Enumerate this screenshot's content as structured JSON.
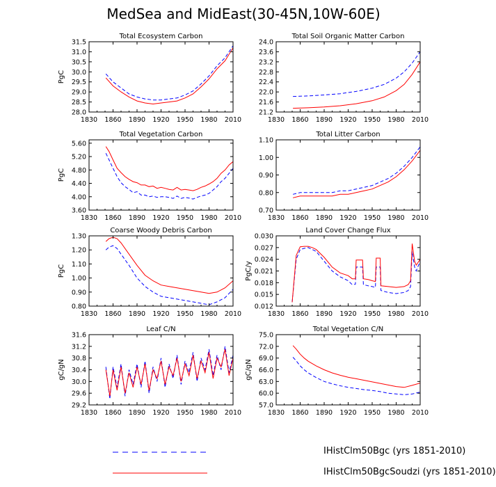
{
  "title": "MedSea and MidEast(30-45N,10W-60E)",
  "legend": [
    {
      "label": "IHistClm50Bgc (yrs 1851-2010)",
      "color": "#0000ff",
      "style": "dashed"
    },
    {
      "label": "IHistClm50BgcSoudzi (yrs 1851-2010)",
      "color": "#ff0000",
      "style": "solid"
    }
  ],
  "chart_data": [
    {
      "type": "line",
      "title": "Total Ecosystem Carbon",
      "xlabel": "",
      "ylabel": "PgC",
      "xlim": [
        1830,
        2010
      ],
      "xticks": [
        "1830",
        "1860",
        "1890",
        "1920",
        "1950",
        "1980",
        "2010"
      ],
      "ylim": [
        28.0,
        31.5
      ],
      "yticks": [
        "28.0",
        "28.5",
        "29.0",
        "29.5",
        "30.0",
        "30.5",
        "31.0",
        "31.5"
      ],
      "x": [
        1851,
        1860,
        1870,
        1880,
        1890,
        1900,
        1910,
        1920,
        1930,
        1940,
        1950,
        1960,
        1970,
        1980,
        1990,
        2000,
        2010
      ],
      "series": [
        {
          "name": "IHistClm50Bgc (yrs 1851-2010)",
          "values": [
            29.9,
            29.5,
            29.2,
            28.9,
            28.75,
            28.65,
            28.6,
            28.6,
            28.65,
            28.7,
            28.85,
            29.05,
            29.4,
            29.8,
            30.3,
            30.7,
            31.3
          ]
        },
        {
          "name": "IHistClm50BgcSoudzi (yrs 1851-2010)",
          "values": [
            29.7,
            29.3,
            29.0,
            28.75,
            28.55,
            28.45,
            28.4,
            28.45,
            28.5,
            28.55,
            28.7,
            28.9,
            29.25,
            29.65,
            30.15,
            30.55,
            31.2
          ]
        }
      ]
    },
    {
      "type": "line",
      "title": "Total Soil Organic Matter Carbon",
      "xlabel": "",
      "ylabel": "",
      "xlim": [
        1830,
        2010
      ],
      "xticks": [
        "1830",
        "1860",
        "1890",
        "1920",
        "1950",
        "1980",
        "2010"
      ],
      "ylim": [
        21.2,
        24.0
      ],
      "yticks": [
        "21.2",
        "21.6",
        "22.0",
        "22.4",
        "22.8",
        "23.2",
        "23.6",
        "24.0"
      ],
      "x": [
        1851,
        1870,
        1890,
        1910,
        1930,
        1950,
        1965,
        1980,
        1990,
        2000,
        2010
      ],
      "series": [
        {
          "name": "IHistClm50Bgc (yrs 1851-2010)",
          "values": [
            21.82,
            21.84,
            21.88,
            21.93,
            22.02,
            22.15,
            22.3,
            22.55,
            22.8,
            23.15,
            23.6
          ]
        },
        {
          "name": "IHistClm50BgcSoudzi (yrs 1851-2010)",
          "values": [
            21.35,
            21.37,
            21.4,
            21.45,
            21.53,
            21.65,
            21.8,
            22.05,
            22.3,
            22.7,
            23.2
          ]
        }
      ]
    },
    {
      "type": "line",
      "title": "Total Vegetation Carbon",
      "xlabel": "",
      "ylabel": "PgC",
      "xlim": [
        1830,
        2010
      ],
      "xticks": [
        "1830",
        "1860",
        "1890",
        "1920",
        "1950",
        "1980",
        "2010"
      ],
      "ylim": [
        3.6,
        5.7
      ],
      "yticks": [
        "3.60",
        "4.00",
        "4.40",
        "4.80",
        "5.20",
        "5.60"
      ],
      "x": [
        1851,
        1855,
        1860,
        1865,
        1870,
        1875,
        1880,
        1885,
        1890,
        1895,
        1900,
        1905,
        1910,
        1915,
        1920,
        1925,
        1930,
        1935,
        1940,
        1945,
        1950,
        1955,
        1960,
        1965,
        1970,
        1975,
        1980,
        1985,
        1990,
        1995,
        2000,
        2005,
        2010
      ],
      "series": [
        {
          "name": "IHistClm50Bgc (yrs 1851-2010)",
          "values": [
            5.3,
            5.1,
            4.85,
            4.6,
            4.42,
            4.3,
            4.22,
            4.12,
            4.15,
            4.05,
            4.05,
            4.0,
            4.02,
            3.98,
            4.0,
            4.0,
            3.98,
            3.95,
            4.02,
            3.95,
            3.98,
            3.96,
            3.93,
            3.98,
            4.02,
            4.05,
            4.1,
            4.2,
            4.3,
            4.45,
            4.55,
            4.7,
            4.85
          ]
        },
        {
          "name": "IHistClm50BgcSoudzi (yrs 1851-2010)",
          "values": [
            5.5,
            5.35,
            5.1,
            4.85,
            4.72,
            4.6,
            4.52,
            4.45,
            4.42,
            4.35,
            4.35,
            4.3,
            4.32,
            4.25,
            4.28,
            4.25,
            4.22,
            4.2,
            4.28,
            4.2,
            4.22,
            4.2,
            4.18,
            4.22,
            4.28,
            4.32,
            4.38,
            4.45,
            4.55,
            4.7,
            4.8,
            4.95,
            5.05
          ]
        }
      ]
    },
    {
      "type": "line",
      "title": "Total Litter Carbon",
      "xlabel": "",
      "ylabel": "",
      "xlim": [
        1830,
        2010
      ],
      "xticks": [
        "1830",
        "1860",
        "1890",
        "1920",
        "1950",
        "1980",
        "2010"
      ],
      "ylim": [
        0.7,
        1.1
      ],
      "yticks": [
        "0.70",
        "0.80",
        "0.90",
        "1.00",
        "1.10"
      ],
      "x": [
        1851,
        1860,
        1870,
        1880,
        1890,
        1900,
        1910,
        1920,
        1930,
        1940,
        1950,
        1960,
        1970,
        1980,
        1990,
        2000,
        2010
      ],
      "series": [
        {
          "name": "IHistClm50Bgc (yrs 1851-2010)",
          "values": [
            0.79,
            0.8,
            0.8,
            0.8,
            0.8,
            0.8,
            0.81,
            0.81,
            0.82,
            0.83,
            0.84,
            0.86,
            0.88,
            0.91,
            0.95,
            1.0,
            1.06
          ]
        },
        {
          "name": "IHistClm50BgcSoudzi (yrs 1851-2010)",
          "values": [
            0.77,
            0.78,
            0.78,
            0.78,
            0.78,
            0.78,
            0.79,
            0.79,
            0.8,
            0.81,
            0.82,
            0.84,
            0.86,
            0.89,
            0.93,
            0.98,
            1.04
          ]
        }
      ]
    },
    {
      "type": "line",
      "title": "Coarse Woody Debris Carbon",
      "xlabel": "",
      "ylabel": "PgC",
      "xlim": [
        1830,
        2010
      ],
      "xticks": [
        "1830",
        "1860",
        "1890",
        "1920",
        "1950",
        "1980",
        "2010"
      ],
      "ylim": [
        0.8,
        1.3
      ],
      "yticks": [
        "0.80",
        "0.90",
        "1.00",
        "1.10",
        "1.20",
        "1.30"
      ],
      "x": [
        1851,
        1855,
        1860,
        1865,
        1870,
        1880,
        1890,
        1900,
        1910,
        1920,
        1930,
        1940,
        1950,
        1960,
        1970,
        1980,
        1990,
        2000,
        2010
      ],
      "series": [
        {
          "name": "IHistClm50Bgc (yrs 1851-2010)",
          "values": [
            1.2,
            1.22,
            1.23,
            1.21,
            1.17,
            1.09,
            1.0,
            0.94,
            0.9,
            0.87,
            0.86,
            0.85,
            0.84,
            0.83,
            0.82,
            0.81,
            0.83,
            0.86,
            0.92
          ]
        },
        {
          "name": "IHistClm50BgcSoudzi (yrs 1851-2010)",
          "values": [
            1.26,
            1.28,
            1.29,
            1.28,
            1.25,
            1.17,
            1.09,
            1.02,
            0.98,
            0.95,
            0.94,
            0.93,
            0.92,
            0.91,
            0.9,
            0.89,
            0.9,
            0.93,
            0.98
          ]
        }
      ]
    },
    {
      "type": "line",
      "title": "Land Cover Change Flux",
      "xlabel": "",
      "ylabel": "PgC/y",
      "xlim": [
        1830,
        2010
      ],
      "xticks": [
        "1830",
        "1860",
        "1890",
        "1920",
        "1950",
        "1980",
        "2010"
      ],
      "ylim": [
        0.012,
        0.03
      ],
      "yticks": [
        "0.012",
        "0.015",
        "0.018",
        "0.021",
        "0.024",
        "0.027",
        "0.030"
      ],
      "x": [
        1850,
        1855,
        1860,
        1865,
        1870,
        1875,
        1880,
        1890,
        1900,
        1910,
        1920,
        1925,
        1929,
        1930,
        1938,
        1939,
        1945,
        1950,
        1954,
        1955,
        1960,
        1961,
        1970,
        1980,
        1990,
        1995,
        1998,
        2000,
        2003,
        2005,
        2010
      ],
      "series": [
        {
          "name": "IHistClm50Bgc (yrs 1851-2010)",
          "values": [
            0.013,
            0.024,
            0.0265,
            0.0268,
            0.027,
            0.0265,
            0.026,
            0.0235,
            0.021,
            0.0195,
            0.0185,
            0.0175,
            0.0176,
            0.022,
            0.022,
            0.0175,
            0.0172,
            0.017,
            0.0168,
            0.022,
            0.022,
            0.016,
            0.0155,
            0.0152,
            0.0155,
            0.016,
            0.017,
            0.026,
            0.022,
            0.021,
            0.0235
          ]
        },
        {
          "name": "IHistClm50BgcSoudzi (yrs 1851-2010)",
          "values": [
            0.013,
            0.025,
            0.0272,
            0.0273,
            0.0273,
            0.027,
            0.0265,
            0.0245,
            0.022,
            0.0205,
            0.0198,
            0.019,
            0.019,
            0.0238,
            0.0238,
            0.019,
            0.0188,
            0.0185,
            0.0183,
            0.0243,
            0.0243,
            0.0172,
            0.017,
            0.0168,
            0.017,
            0.0175,
            0.0185,
            0.028,
            0.0235,
            0.0225,
            0.024
          ]
        }
      ]
    },
    {
      "type": "line",
      "title": "Leaf C/N",
      "xlabel": "",
      "ylabel": "gC/gN",
      "xlim": [
        1830,
        2010
      ],
      "xticks": [
        "1830",
        "1860",
        "1890",
        "1920",
        "1950",
        "1980",
        "2010"
      ],
      "ylim": [
        29.2,
        31.6
      ],
      "yticks": [
        "29.2",
        "29.6",
        "30.0",
        "30.4",
        "30.8",
        "31.2",
        "31.6"
      ],
      "x": [
        1851,
        1856,
        1860,
        1865,
        1870,
        1875,
        1880,
        1885,
        1890,
        1895,
        1900,
        1905,
        1910,
        1915,
        1920,
        1925,
        1930,
        1935,
        1940,
        1945,
        1950,
        1955,
        1960,
        1965,
        1970,
        1975,
        1980,
        1985,
        1990,
        1995,
        2000,
        2005,
        2010
      ],
      "series": [
        {
          "name": "IHistClm50Bgc (yrs 1851-2010)",
          "values": [
            30.5,
            29.4,
            30.5,
            29.8,
            30.6,
            29.5,
            30.4,
            29.9,
            30.6,
            29.8,
            30.7,
            29.6,
            30.5,
            30.0,
            30.8,
            29.8,
            30.6,
            30.1,
            30.9,
            29.9,
            30.7,
            30.3,
            31.0,
            30.0,
            30.8,
            30.4,
            31.1,
            30.2,
            30.9,
            30.4,
            31.2,
            30.3,
            30.9
          ]
        },
        {
          "name": "IHistClm50BgcSoudzi (yrs 1851-2010)",
          "values": [
            30.4,
            29.5,
            30.4,
            29.7,
            30.5,
            29.6,
            30.3,
            29.8,
            30.5,
            29.9,
            30.6,
            29.7,
            30.4,
            30.1,
            30.7,
            29.9,
            30.5,
            30.2,
            30.8,
            30.0,
            30.6,
            30.2,
            30.9,
            30.1,
            30.7,
            30.3,
            31.0,
            30.1,
            30.8,
            30.5,
            31.1,
            30.2,
            30.8
          ]
        }
      ]
    },
    {
      "type": "line",
      "title": "Total Vegetation C/N",
      "xlabel": "",
      "ylabel": "gC/gN",
      "xlim": [
        1830,
        2010
      ],
      "xticks": [
        "1830",
        "1860",
        "1890",
        "1920",
        "1950",
        "1980",
        "2010"
      ],
      "ylim": [
        57.0,
        75.0
      ],
      "yticks": [
        "57.0",
        "60.0",
        "63.0",
        "66.0",
        "69.0",
        "72.0",
        "75.0"
      ],
      "x": [
        1851,
        1855,
        1860,
        1865,
        1870,
        1880,
        1890,
        1900,
        1910,
        1920,
        1930,
        1940,
        1950,
        1960,
        1970,
        1980,
        1990,
        2000,
        2010
      ],
      "series": [
        {
          "name": "IHistClm50Bgc (yrs 1851-2010)",
          "values": [
            69.2,
            68.3,
            67.0,
            66.0,
            65.2,
            64.0,
            63.0,
            62.4,
            61.9,
            61.5,
            61.2,
            60.9,
            60.7,
            60.4,
            60.0,
            59.8,
            59.6,
            59.8,
            60.3
          ]
        },
        {
          "name": "IHistClm50BgcSoudzi (yrs 1851-2010)",
          "values": [
            72.2,
            71.3,
            70.0,
            69.0,
            68.2,
            67.0,
            66.0,
            65.2,
            64.6,
            64.1,
            63.7,
            63.3,
            62.9,
            62.5,
            62.1,
            61.7,
            61.5,
            62.0,
            62.6
          ]
        }
      ]
    }
  ]
}
